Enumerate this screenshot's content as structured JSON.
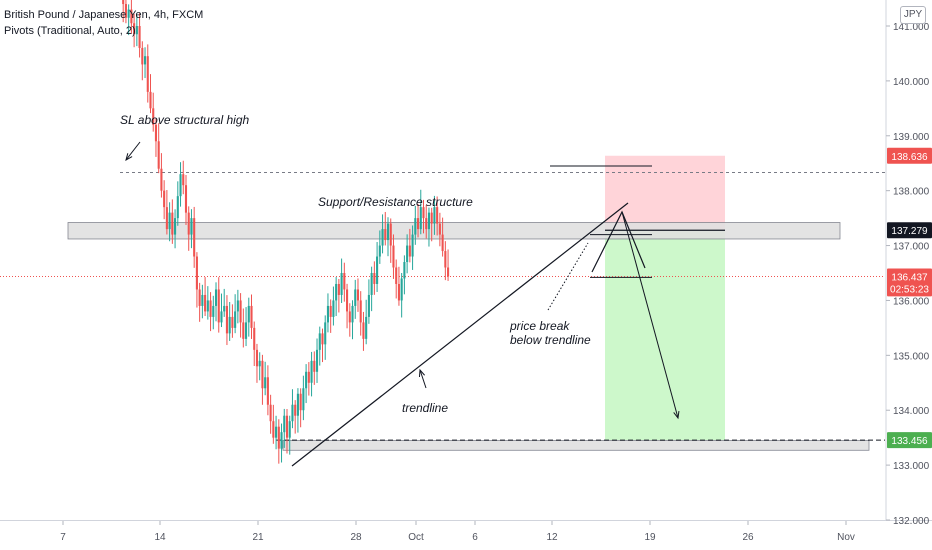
{
  "legend": {
    "symbol_line": "British Pound / Japanese Yen, 4h, FXCM",
    "indicator_line": "Pivots (Traditional, Auto, 2)"
  },
  "currency_badge": "JPY",
  "colors": {
    "bull": "#26a69a",
    "bear": "#ef5350",
    "axis_text": "#50535e",
    "current_price_bg": "#ef5350",
    "resistance_box": "#e0e0e0",
    "stop_zone": "#ffcdd2",
    "target_zone": "#c8f7c5"
  },
  "chart_data": {
    "type": "candlestick",
    "ylim": [
      132.0,
      141.5
    ],
    "y_ticks": [
      132.0,
      133.0,
      134.0,
      135.0,
      136.0,
      137.0,
      138.0,
      139.0,
      140.0,
      141.0
    ],
    "y_tick_labels": [
      "132.000",
      "133.000",
      "134.000",
      "135.000",
      "136.000",
      "137.000",
      "138.000",
      "139.000",
      "140.000",
      "141.000"
    ],
    "x_tick_labels": [
      "7",
      "14",
      "21",
      "28",
      "Oct",
      "6",
      "12",
      "19",
      "26",
      "Nov"
    ],
    "candles_per_day": 6,
    "price_labels": [
      {
        "name": "stop-loss",
        "value": 138.636,
        "text": "138.636",
        "bg": "#ef5350",
        "fg": "#ffffff"
      },
      {
        "name": "entry",
        "value": 137.279,
        "text": "137.279",
        "bg": "#131722",
        "fg": "#ffffff"
      },
      {
        "name": "current-price",
        "value": 136.437,
        "text": "136.437",
        "bg": "#ef5350",
        "fg": "#ffffff"
      },
      {
        "name": "countdown",
        "value": 136.22,
        "text": "02:53:23",
        "bg": "#ef5350",
        "fg": "#ffffff"
      },
      {
        "name": "take-profit",
        "value": 133.456,
        "text": "133.456",
        "bg": "#4caf50",
        "fg": "#ffffff"
      }
    ],
    "closes": [
      141.4,
      141.15,
      141.3,
      141.05,
      140.85,
      141.0,
      140.6,
      140.3,
      140.45,
      139.8,
      139.5,
      139.2,
      138.9,
      138.4,
      138.0,
      137.7,
      137.3,
      137.6,
      137.2,
      137.5,
      137.9,
      138.3,
      138.1,
      137.6,
      137.2,
      137.5,
      136.8,
      136.2,
      135.9,
      136.1,
      135.8,
      136.0,
      135.7,
      135.9,
      136.2,
      135.6,
      135.8,
      135.9,
      135.4,
      135.7,
      135.5,
      135.8,
      136.0,
      135.6,
      135.3,
      135.6,
      135.9,
      135.5,
      135.1,
      134.8,
      134.9,
      134.4,
      134.6,
      134.1,
      133.8,
      133.5,
      133.7,
      133.3,
      133.6,
      133.9,
      133.5,
      133.8,
      134.1,
      133.9,
      134.3,
      134.0,
      134.4,
      134.7,
      134.5,
      134.9,
      134.7,
      135.1,
      135.4,
      135.2,
      135.6,
      135.9,
      135.7,
      136.0,
      136.3,
      136.1,
      136.5,
      136.2,
      135.8,
      135.6,
      135.9,
      136.2,
      136.0,
      135.6,
      135.3,
      135.7,
      136.1,
      136.5,
      136.3,
      136.8,
      137.0,
      137.3,
      137.1,
      137.4,
      137.0,
      136.6,
      136.3,
      136.0,
      136.4,
      136.7,
      137.0,
      136.8,
      137.2,
      137.5,
      137.3,
      137.7,
      137.5,
      137.3,
      137.6,
      137.4,
      137.7,
      137.4,
      137.2,
      136.9,
      136.6,
      136.437
    ],
    "zones": {
      "support_resistance": {
        "low": 137.12,
        "high": 137.42,
        "label": "Support/Resistance structure"
      },
      "lower_support": {
        "low": 133.27,
        "high": 133.45
      },
      "stop_zone": {
        "low": 137.279,
        "high": 138.636
      },
      "target_zone": {
        "low": 133.456,
        "high": 137.279
      },
      "trendline_label": "trendline",
      "sl_label": "SL above structural high",
      "break_label_1": "price break",
      "break_label_2": "below trendline"
    }
  }
}
